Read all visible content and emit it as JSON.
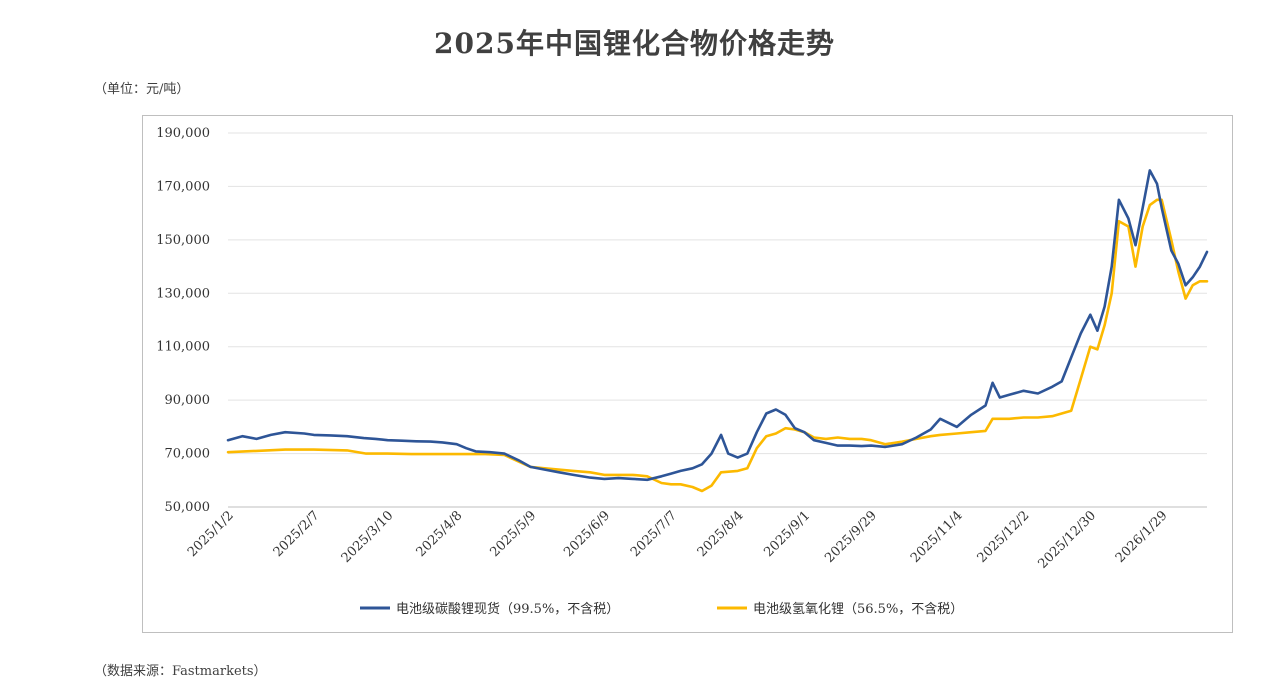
{
  "title": "2025年中国锂化合物价格走势",
  "unit_note": "（单位：元/吨）",
  "source_note": "（数据来源：Fastmarkets）",
  "chart_data": {
    "type": "line",
    "title": "2025年中国锂化合物价格走势",
    "ylim": [
      50000,
      190000
    ],
    "y_ticks": [
      "50,000",
      "70,000",
      "90,000",
      "110,000",
      "130,000",
      "150,000",
      "170,000",
      "190,000"
    ],
    "x_ticks": [
      "2025/1/2",
      "2025/2/7",
      "2025/3/10",
      "2025/4/8",
      "2025/5/9",
      "2025/6/9",
      "2025/7/7",
      "2025/8/4",
      "2025/9/1",
      "2025/9/29",
      "2025/11/4",
      "2025/12/2",
      "2025/12/30",
      "2026/1/29"
    ],
    "grid": true,
    "legend_position": "bottom",
    "series": [
      {
        "name": "电池级碳酸锂现货（99.5%，不含税）",
        "color": "#2e5597",
        "points": [
          [
            "2025/1/2",
            75000
          ],
          [
            "2025/1/8",
            76500
          ],
          [
            "2025/1/14",
            75500
          ],
          [
            "2025/1/20",
            77000
          ],
          [
            "2025/1/26",
            78000
          ],
          [
            "2025/2/3",
            77500
          ],
          [
            "2025/2/7",
            77000
          ],
          [
            "2025/2/14",
            76800
          ],
          [
            "2025/2/21",
            76500
          ],
          [
            "2025/2/28",
            75800
          ],
          [
            "2025/3/5",
            75500
          ],
          [
            "2025/3/10",
            75000
          ],
          [
            "2025/3/16",
            74800
          ],
          [
            "2025/3/22",
            74600
          ],
          [
            "2025/3/28",
            74500
          ],
          [
            "2025/4/2",
            74200
          ],
          [
            "2025/4/8",
            73500
          ],
          [
            "2025/4/12",
            72000
          ],
          [
            "2025/4/16",
            70800
          ],
          [
            "2025/4/22",
            70500
          ],
          [
            "2025/4/28",
            70000
          ],
          [
            "2025/5/4",
            67500
          ],
          [
            "2025/5/9",
            65000
          ],
          [
            "2025/5/15",
            64000
          ],
          [
            "2025/5/21",
            63000
          ],
          [
            "2025/5/27",
            62000
          ],
          [
            "2025/6/3",
            61000
          ],
          [
            "2025/6/9",
            60500
          ],
          [
            "2025/6/15",
            60800
          ],
          [
            "2025/6/21",
            60500
          ],
          [
            "2025/6/27",
            60200
          ],
          [
            "2025/7/3",
            61500
          ],
          [
            "2025/7/7",
            62500
          ],
          [
            "2025/7/11",
            63500
          ],
          [
            "2025/7/16",
            64500
          ],
          [
            "2025/7/20",
            66000
          ],
          [
            "2025/7/24",
            70000
          ],
          [
            "2025/7/28",
            77000
          ],
          [
            "2025/7/31",
            70000
          ],
          [
            "2025/8/4",
            68500
          ],
          [
            "2025/8/8",
            70000
          ],
          [
            "2025/8/12",
            78000
          ],
          [
            "2025/8/16",
            85000
          ],
          [
            "2025/8/20",
            86500
          ],
          [
            "2025/8/24",
            84500
          ],
          [
            "2025/8/28",
            79500
          ],
          [
            "2025/9/1",
            78000
          ],
          [
            "2025/9/5",
            75000
          ],
          [
            "2025/9/10",
            74000
          ],
          [
            "2025/9/15",
            73000
          ],
          [
            "2025/9/20",
            73000
          ],
          [
            "2025/9/25",
            72800
          ],
          [
            "2025/9/29",
            73000
          ],
          [
            "2025/10/5",
            72500
          ],
          [
            "2025/10/12",
            73500
          ],
          [
            "2025/10/18",
            76000
          ],
          [
            "2025/10/24",
            79000
          ],
          [
            "2025/10/28",
            83000
          ],
          [
            "2025/11/4",
            80000
          ],
          [
            "2025/11/10",
            84500
          ],
          [
            "2025/11/16",
            88000
          ],
          [
            "2025/11/19",
            96500
          ],
          [
            "2025/11/22",
            91000
          ],
          [
            "2025/11/26",
            92000
          ],
          [
            "2025/12/2",
            93500
          ],
          [
            "2025/12/8",
            92500
          ],
          [
            "2025/12/14",
            95000
          ],
          [
            "2025/12/18",
            97000
          ],
          [
            "2025/12/22",
            106000
          ],
          [
            "2025/12/26",
            115000
          ],
          [
            "2025/12/30",
            122000
          ],
          [
            "2026/1/2",
            116000
          ],
          [
            "2026/1/5",
            125000
          ],
          [
            "2026/1/8",
            140000
          ],
          [
            "2026/1/11",
            165000
          ],
          [
            "2026/1/15",
            158000
          ],
          [
            "2026/1/18",
            148000
          ],
          [
            "2026/1/21",
            162000
          ],
          [
            "2026/1/24",
            176000
          ],
          [
            "2026/1/27",
            171000
          ],
          [
            "2026/1/29",
            162000
          ],
          [
            "2026/2/2",
            146000
          ],
          [
            "2026/2/5",
            141000
          ],
          [
            "2026/2/8",
            133000
          ],
          [
            "2026/2/11",
            136000
          ],
          [
            "2026/2/14",
            140000
          ],
          [
            "2026/2/17",
            145500
          ]
        ]
      },
      {
        "name": "电池级氢氧化锂（56.5%，不含税）",
        "color": "#fcb900",
        "points": [
          [
            "2025/1/2",
            70500
          ],
          [
            "2025/1/14",
            71000
          ],
          [
            "2025/1/26",
            71500
          ],
          [
            "2025/2/7",
            71500
          ],
          [
            "2025/2/21",
            71200
          ],
          [
            "2025/3/1",
            70000
          ],
          [
            "2025/3/10",
            70000
          ],
          [
            "2025/3/20",
            69800
          ],
          [
            "2025/4/2",
            69800
          ],
          [
            "2025/4/8",
            69800
          ],
          [
            "2025/4/20",
            69800
          ],
          [
            "2025/4/28",
            69500
          ],
          [
            "2025/5/4",
            67000
          ],
          [
            "2025/5/9",
            65000
          ],
          [
            "2025/5/15",
            64500
          ],
          [
            "2025/5/27",
            63500
          ],
          [
            "2025/6/3",
            63000
          ],
          [
            "2025/6/9",
            62000
          ],
          [
            "2025/6/21",
            62000
          ],
          [
            "2025/6/27",
            61500
          ],
          [
            "2025/7/3",
            59000
          ],
          [
            "2025/7/7",
            58500
          ],
          [
            "2025/7/11",
            58500
          ],
          [
            "2025/7/16",
            57500
          ],
          [
            "2025/7/20",
            56000
          ],
          [
            "2025/7/24",
            58000
          ],
          [
            "2025/7/28",
            63000
          ],
          [
            "2025/8/4",
            63500
          ],
          [
            "2025/8/8",
            64500
          ],
          [
            "2025/8/12",
            72000
          ],
          [
            "2025/8/16",
            76500
          ],
          [
            "2025/8/20",
            77500
          ],
          [
            "2025/8/24",
            79500
          ],
          [
            "2025/8/28",
            79000
          ],
          [
            "2025/9/1",
            78000
          ],
          [
            "2025/9/5",
            76000
          ],
          [
            "2025/9/10",
            75500
          ],
          [
            "2025/9/15",
            76000
          ],
          [
            "2025/9/20",
            75500
          ],
          [
            "2025/9/25",
            75500
          ],
          [
            "2025/9/29",
            75000
          ],
          [
            "2025/10/5",
            73500
          ],
          [
            "2025/10/12",
            74500
          ],
          [
            "2025/10/18",
            75500
          ],
          [
            "2025/10/24",
            76500
          ],
          [
            "2025/10/28",
            77000
          ],
          [
            "2025/11/4",
            77500
          ],
          [
            "2025/11/10",
            78000
          ],
          [
            "2025/11/16",
            78500
          ],
          [
            "2025/11/19",
            83000
          ],
          [
            "2025/11/26",
            83000
          ],
          [
            "2025/12/2",
            83500
          ],
          [
            "2025/12/8",
            83500
          ],
          [
            "2025/12/14",
            84000
          ],
          [
            "2025/12/18",
            85000
          ],
          [
            "2025/12/22",
            86000
          ],
          [
            "2025/12/26",
            98000
          ],
          [
            "2025/12/30",
            110000
          ],
          [
            "2026/1/2",
            109000
          ],
          [
            "2026/1/5",
            118000
          ],
          [
            "2026/1/8",
            130000
          ],
          [
            "2026/1/11",
            157000
          ],
          [
            "2026/1/15",
            155000
          ],
          [
            "2026/1/18",
            140000
          ],
          [
            "2026/1/21",
            155000
          ],
          [
            "2026/1/24",
            163000
          ],
          [
            "2026/1/27",
            165000
          ],
          [
            "2026/1/29",
            165000
          ],
          [
            "2026/2/2",
            150000
          ],
          [
            "2026/2/5",
            138000
          ],
          [
            "2026/2/8",
            128000
          ],
          [
            "2026/2/11",
            133000
          ],
          [
            "2026/2/14",
            134500
          ],
          [
            "2026/2/17",
            134500
          ]
        ]
      }
    ]
  }
}
